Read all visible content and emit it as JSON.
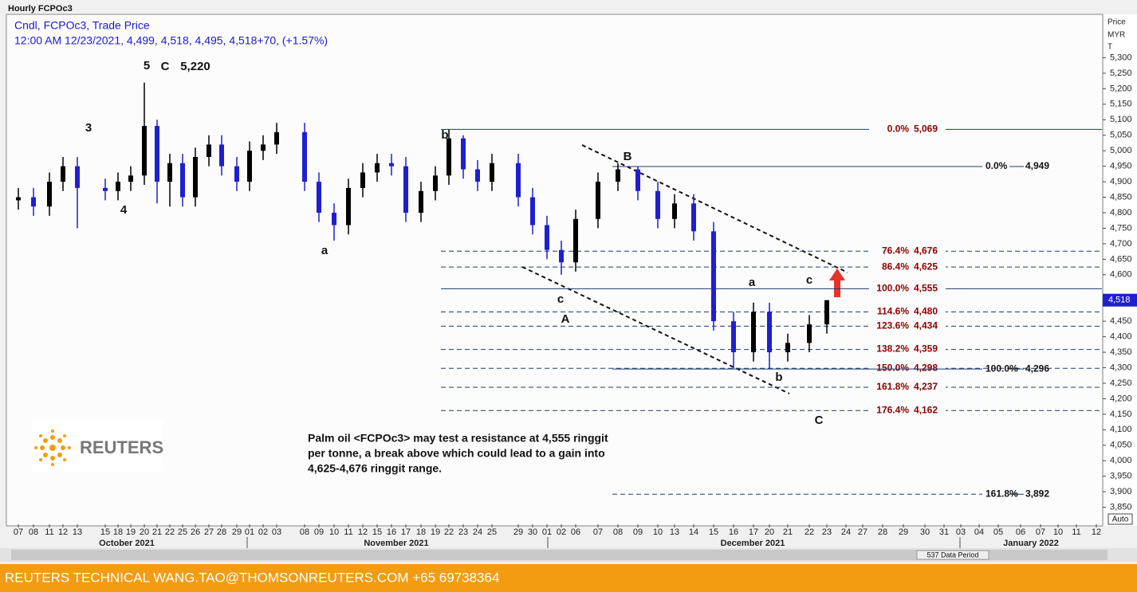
{
  "chart_data": {
    "type": "candlestick",
    "window_title": "Hourly FCPOc3",
    "legend_line": "Cndl, FCPOc3, Trade Price",
    "ohlc_line": "12:00 AM 12/23/2021, 4,499, 4,518, 4,495, 4,518+70, (+1.57%)",
    "y_axis_title": [
      "Price",
      "MYR",
      "T"
    ],
    "last_price": {
      "value": 4518,
      "label": "4,518"
    },
    "up_color": "#000000",
    "down_color": "#1f1fd0",
    "categories": [
      "07",
      "08",
      "11",
      "12",
      "13",
      "15",
      "18",
      "19",
      "20",
      "21",
      "22",
      "25",
      "26",
      "27",
      "28",
      "29",
      "01",
      "02",
      "03",
      "08",
      "09",
      "10",
      "11",
      "12",
      "15",
      "16",
      "17",
      "18",
      "19",
      "22",
      "23",
      "24",
      "25",
      "29",
      "30",
      "01",
      "02",
      "06",
      "07",
      "08",
      "09",
      "10",
      "13",
      "14",
      "15",
      "16",
      "17",
      "20",
      "21",
      "22",
      "23",
      "24",
      "27",
      "28",
      "29",
      "30",
      "31",
      "03",
      "04",
      "05",
      "06",
      "07",
      "10",
      "11",
      "12"
    ],
    "months": [
      "October 2021",
      "November 2021",
      "December 2021",
      "January 2022"
    ],
    "series": {
      "open": [
        4840,
        4850,
        4820,
        4900,
        4950,
        4880,
        4870,
        4900,
        4920,
        5080,
        4900,
        4960,
        4850,
        4980,
        5020,
        4950,
        4900,
        5000,
        5020,
        5060,
        4900,
        4800,
        4760,
        4880,
        4930,
        4960,
        4950,
        4800,
        4870,
        4920,
        5040,
        4940,
        4900,
        4960,
        4850,
        4760,
        4680,
        4640,
        4780,
        4900,
        4940,
        4870,
        4780,
        4830,
        4740,
        4450,
        4350,
        4480,
        4350,
        4380,
        4440,
        null,
        null,
        null,
        null,
        null,
        null,
        null,
        null,
        null,
        null,
        null,
        null,
        null,
        null
      ],
      "high": [
        4880,
        4880,
        4930,
        4980,
        4980,
        4910,
        4930,
        4950,
        5220,
        5100,
        4990,
        4990,
        5010,
        5050,
        5050,
        4980,
        5030,
        5050,
        5090,
        5090,
        4930,
        4830,
        4910,
        4960,
        4990,
        4990,
        4980,
        4900,
        4950,
        5069,
        5050,
        4970,
        4990,
        4990,
        4880,
        4790,
        4710,
        4810,
        4930,
        4960,
        4950,
        4900,
        4860,
        4860,
        4770,
        4480,
        4510,
        4510,
        4410,
        4470,
        4518,
        null,
        null,
        null,
        null,
        null,
        null,
        null,
        null,
        null,
        null,
        null,
        null,
        null,
        null
      ],
      "low": [
        4810,
        4790,
        4790,
        4870,
        4750,
        4840,
        4840,
        4870,
        4890,
        4830,
        4820,
        4820,
        4820,
        4950,
        4920,
        4870,
        4870,
        4970,
        4990,
        4870,
        4770,
        4710,
        4730,
        4850,
        4900,
        4920,
        4770,
        4770,
        4840,
        4890,
        4910,
        4870,
        4870,
        4820,
        4730,
        4650,
        4600,
        4610,
        4750,
        4870,
        4840,
        4750,
        4750,
        4710,
        4420,
        4298,
        4320,
        4296,
        4320,
        4350,
        4410,
        null,
        null,
        null,
        null,
        null,
        null,
        null,
        null,
        null,
        null,
        null,
        null,
        null,
        null
      ],
      "close": [
        4850,
        4820,
        4900,
        4950,
        4880,
        4870,
        4900,
        4920,
        5080,
        4900,
        4960,
        4850,
        4980,
        5020,
        4950,
        4900,
        5000,
        5020,
        5060,
        4900,
        4800,
        4760,
        4880,
        4930,
        4960,
        4950,
        4800,
        4870,
        4920,
        5040,
        4940,
        4900,
        4960,
        4850,
        4760,
        4680,
        4640,
        4780,
        4900,
        4940,
        4870,
        4780,
        4830,
        4740,
        4450,
        4350,
        4480,
        4350,
        4380,
        4440,
        4518,
        null,
        null,
        null,
        null,
        null,
        null,
        null,
        null,
        null,
        null,
        null,
        null,
        null,
        null
      ]
    },
    "ylim": [
      3795,
      5440
    ],
    "yticks": [
      {
        "value": 3850,
        "label": "3,850"
      },
      {
        "value": 3900,
        "label": "3,900"
      },
      {
        "value": 3950,
        "label": "3,950"
      },
      {
        "value": 4000,
        "label": "4,000"
      },
      {
        "value": 4050,
        "label": "4,050"
      },
      {
        "value": 4100,
        "label": "4,100"
      },
      {
        "value": 4150,
        "label": "4,150"
      },
      {
        "value": 4200,
        "label": "4,200"
      },
      {
        "value": 4250,
        "label": "4,250"
      },
      {
        "value": 4300,
        "label": "4,300"
      },
      {
        "value": 4350,
        "label": "4,350"
      },
      {
        "value": 4400,
        "label": "4,400"
      },
      {
        "value": 4450,
        "label": "4,450"
      },
      {
        "value": 4600,
        "label": "4,600"
      },
      {
        "value": 4650,
        "label": "4,650"
      },
      {
        "value": 4700,
        "label": "4,700"
      },
      {
        "value": 4750,
        "label": "4,750"
      },
      {
        "value": 4800,
        "label": "4,800"
      },
      {
        "value": 4850,
        "label": "4,850"
      },
      {
        "value": 4900,
        "label": "4,900"
      },
      {
        "value": 4950,
        "label": "4,950"
      },
      {
        "value": 5000,
        "label": "5,000"
      },
      {
        "value": 5050,
        "label": "5,050"
      },
      {
        "value": 5100,
        "label": "5,100"
      },
      {
        "value": 5150,
        "label": "5,150"
      },
      {
        "value": 5200,
        "label": "5,200"
      },
      {
        "value": 5250,
        "label": "5,250"
      },
      {
        "value": 5300,
        "label": "5,300"
      }
    ],
    "fib_levels": [
      {
        "ratio": "0.0%",
        "value": 5069,
        "label": "5,069",
        "style": "solid"
      },
      {
        "ratio": "76.4%",
        "value": 4676,
        "label": "4,676",
        "style": "dashed"
      },
      {
        "ratio": "86.4%",
        "value": 4625,
        "label": "4,625",
        "style": "dashed"
      },
      {
        "ratio": "100.0%",
        "value": 4555,
        "label": "4,555",
        "style": "solid"
      },
      {
        "ratio": "114.6%",
        "value": 4480,
        "label": "4,480",
        "style": "dashed"
      },
      {
        "ratio": "123.6%",
        "value": 4434,
        "label": "4,434",
        "style": "dashed"
      },
      {
        "ratio": "138.2%",
        "value": 4359,
        "label": "4,359",
        "style": "dashed"
      },
      {
        "ratio": "150.0%",
        "value": 4298,
        "label": "4,298",
        "style": "dashed"
      },
      {
        "ratio": "161.8%",
        "value": 4237,
        "label": "4,237",
        "style": "dashed"
      },
      {
        "ratio": "176.4%",
        "value": 4162,
        "label": "4,162",
        "style": "dashed"
      }
    ],
    "projection_levels": [
      {
        "ratio": "0.0%",
        "value": 4949,
        "label": "4,949",
        "style": "solid"
      },
      {
        "ratio": "100.0%",
        "value": 4296,
        "label": "4,296",
        "style": "solid"
      },
      {
        "ratio": "161.8%",
        "value": 3892,
        "label": "3,892",
        "style": "dashed"
      }
    ],
    "wave_labels": [
      "5",
      "C",
      "5,220",
      "3",
      "4",
      "a",
      "b",
      "B",
      "c",
      "A",
      "a",
      "c",
      "b",
      "C"
    ],
    "comment": [
      "Palm oil <FCPOc3> may test a resistance at 4,555 ringgit",
      "per tonne, a break above which could lead to a gain into",
      "4,625-4,676 ringgit range."
    ],
    "logo": "REUTERS",
    "scale_mode": "Auto",
    "data_period": "537 Data Period"
  },
  "footer": "REUTERS TECHNICAL  WANG.TAO@THOMSONREUTERS.COM  +65 69738364"
}
